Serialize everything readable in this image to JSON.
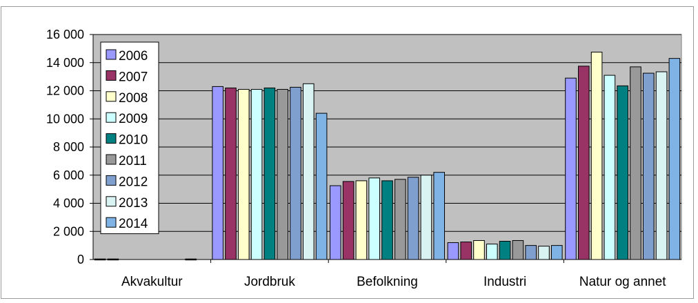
{
  "chart_data": {
    "type": "bar",
    "categories": [
      "Akvakultur",
      "Jordbruk",
      "Befolkning",
      "Industri",
      "Natur og annet"
    ],
    "series": [
      {
        "name": "2006",
        "color": "#9999ff",
        "values": [
          40,
          12300,
          5250,
          1200,
          12900
        ]
      },
      {
        "name": "2007",
        "color": "#993366",
        "values": [
          40,
          12200,
          5550,
          1250,
          13750
        ]
      },
      {
        "name": "2008",
        "color": "#ffffcc",
        "values": [
          0,
          12100,
          5600,
          1350,
          14750
        ]
      },
      {
        "name": "2009",
        "color": "#ccffff",
        "values": [
          0,
          12100,
          5800,
          1100,
          13100
        ]
      },
      {
        "name": "2010",
        "color": "#008080",
        "values": [
          0,
          12200,
          5600,
          1300,
          12350
        ]
      },
      {
        "name": "2011",
        "color": "#999999",
        "values": [
          0,
          12100,
          5700,
          1350,
          13700
        ]
      },
      {
        "name": "2012",
        "color": "#7f9fcf",
        "values": [
          0,
          12250,
          5850,
          1000,
          13250
        ]
      },
      {
        "name": "2013",
        "color": "#d9f2f2",
        "values": [
          40,
          12500,
          6000,
          950,
          13350
        ]
      },
      {
        "name": "2014",
        "color": "#7fb2e5",
        "values": [
          0,
          10400,
          6200,
          1000,
          14300
        ]
      }
    ],
    "yticks": [
      "0",
      "2 000",
      "4 000",
      "6 000",
      "8 000",
      "10 000",
      "12 000",
      "14 000",
      "16 000"
    ],
    "ylim": [
      0,
      16000
    ],
    "grid": true,
    "legend": "top-left",
    "plot_background": "#c0c0c0"
  }
}
